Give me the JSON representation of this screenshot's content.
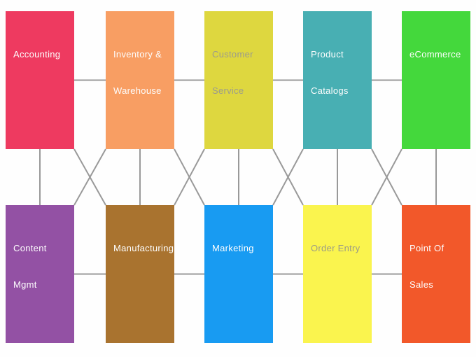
{
  "diagram": {
    "background_color": "#fefefe",
    "connector_color": "#999999",
    "nodes": [
      {
        "id": "accounting",
        "lines": [
          "Accounting"
        ],
        "color": "#EE3A60",
        "text_color": "#fdfdfd"
      },
      {
        "id": "inventory-warehouse",
        "lines": [
          "Inventory &",
          "Warehouse"
        ],
        "color": "#F89E63",
        "text_color": "#fdfdfd"
      },
      {
        "id": "customer-service",
        "lines": [
          "Customer",
          "Service"
        ],
        "color": "#DED73F",
        "text_color": "#9b9b8d"
      },
      {
        "id": "product-catalogs",
        "lines": [
          "Product",
          "Catalogs"
        ],
        "color": "#48AFB3",
        "text_color": "#fdfdfd"
      },
      {
        "id": "ecommerce",
        "lines": [
          "eCommerce"
        ],
        "color": "#44D83C",
        "text_color": "#fdfdfd"
      },
      {
        "id": "content-mgmt",
        "lines": [
          "Content",
          "Mgmt"
        ],
        "color": "#9351A4",
        "text_color": "#fdfdfd"
      },
      {
        "id": "manufacturing",
        "lines": [
          "Manufacturing"
        ],
        "color": "#A9732F",
        "text_color": "#fdfdfd"
      },
      {
        "id": "marketing",
        "lines": [
          "Marketing"
        ],
        "color": "#189BF2",
        "text_color": "#fdfdfd"
      },
      {
        "id": "order-entry",
        "lines": [
          "Order Entry"
        ],
        "color": "#FAF44E",
        "text_color": "#9b9b85"
      },
      {
        "id": "point-of-sales",
        "lines": [
          "Point Of",
          "Sales"
        ],
        "color": "#F2582A",
        "text_color": "#fdfdfd"
      }
    ],
    "edges": [
      {
        "from": "accounting",
        "to": "inventory-warehouse",
        "type": "h"
      },
      {
        "from": "inventory-warehouse",
        "to": "customer-service",
        "type": "h"
      },
      {
        "from": "customer-service",
        "to": "product-catalogs",
        "type": "h"
      },
      {
        "from": "product-catalogs",
        "to": "ecommerce",
        "type": "h"
      },
      {
        "from": "content-mgmt",
        "to": "manufacturing",
        "type": "h"
      },
      {
        "from": "manufacturing",
        "to": "marketing",
        "type": "h"
      },
      {
        "from": "marketing",
        "to": "order-entry",
        "type": "h"
      },
      {
        "from": "order-entry",
        "to": "point-of-sales",
        "type": "h"
      },
      {
        "from": "accounting",
        "to": "content-mgmt",
        "type": "v"
      },
      {
        "from": "inventory-warehouse",
        "to": "manufacturing",
        "type": "v"
      },
      {
        "from": "customer-service",
        "to": "marketing",
        "type": "v"
      },
      {
        "from": "product-catalogs",
        "to": "order-entry",
        "type": "v"
      },
      {
        "from": "ecommerce",
        "to": "point-of-sales",
        "type": "v"
      },
      {
        "from": "accounting",
        "to": "manufacturing",
        "type": "d"
      },
      {
        "from": "inventory-warehouse",
        "to": "content-mgmt",
        "type": "d"
      },
      {
        "from": "inventory-warehouse",
        "to": "marketing",
        "type": "d"
      },
      {
        "from": "customer-service",
        "to": "manufacturing",
        "type": "d"
      },
      {
        "from": "customer-service",
        "to": "order-entry",
        "type": "d"
      },
      {
        "from": "product-catalogs",
        "to": "marketing",
        "type": "d"
      },
      {
        "from": "product-catalogs",
        "to": "point-of-sales",
        "type": "d"
      },
      {
        "from": "ecommerce",
        "to": "order-entry",
        "type": "d"
      }
    ]
  }
}
